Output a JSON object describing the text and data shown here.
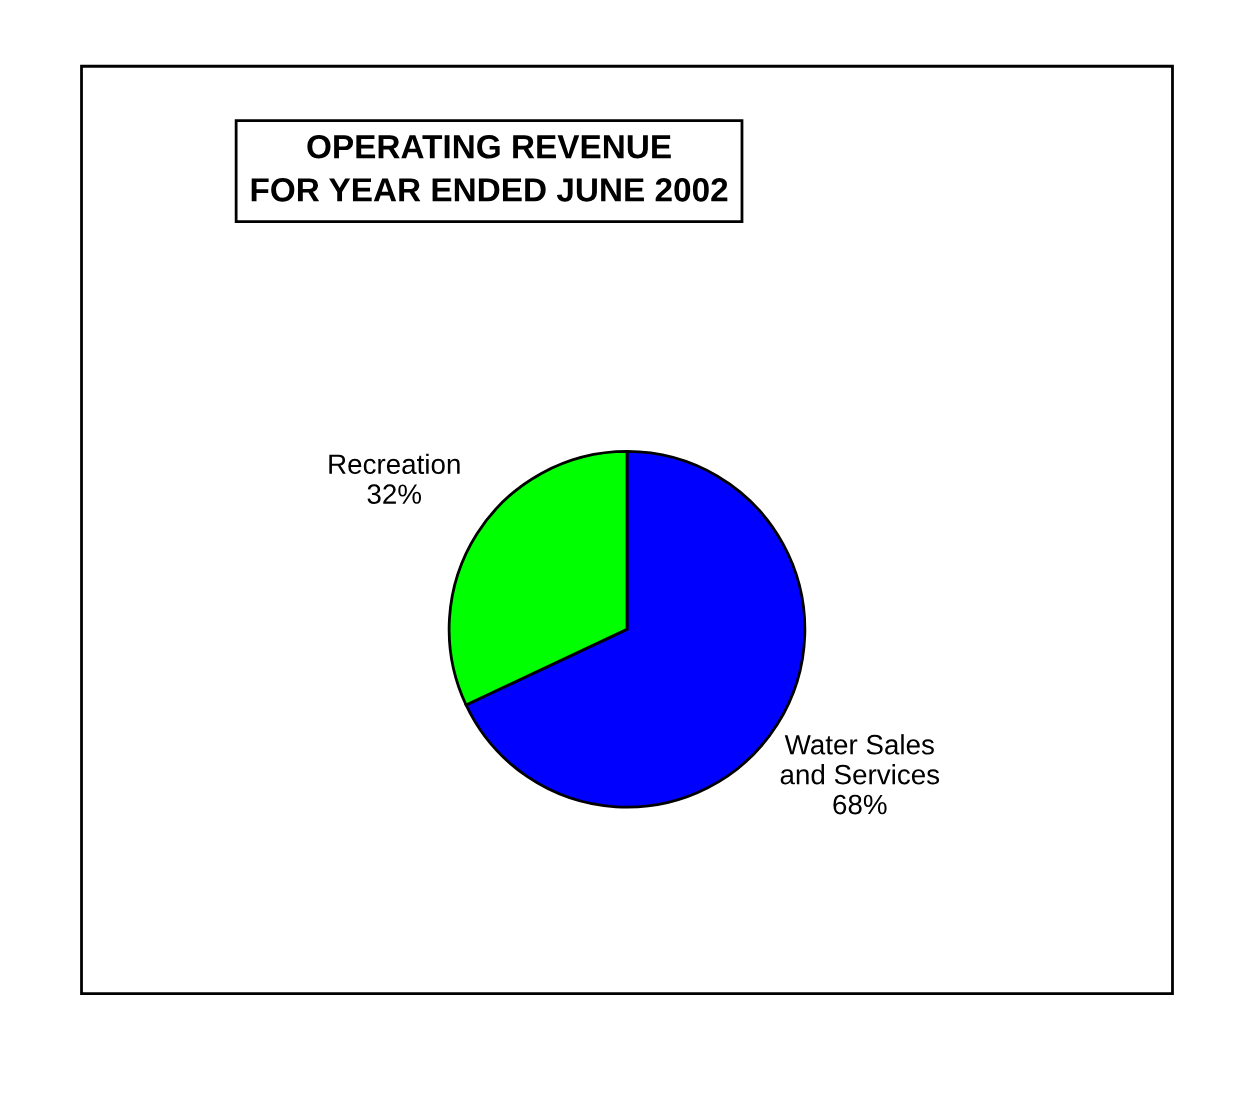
{
  "chart_data": {
    "type": "pie",
    "title": "OPERATING REVENUE",
    "subtitle": "FOR YEAR ENDED JUNE 2002",
    "categories": [
      "Water Sales\nand Services",
      "Recreation"
    ],
    "values": [
      68,
      32
    ],
    "colors": [
      "#0000ff",
      "#00ff00"
    ],
    "value_labels": [
      "68%",
      "32%"
    ],
    "legend": false
  }
}
